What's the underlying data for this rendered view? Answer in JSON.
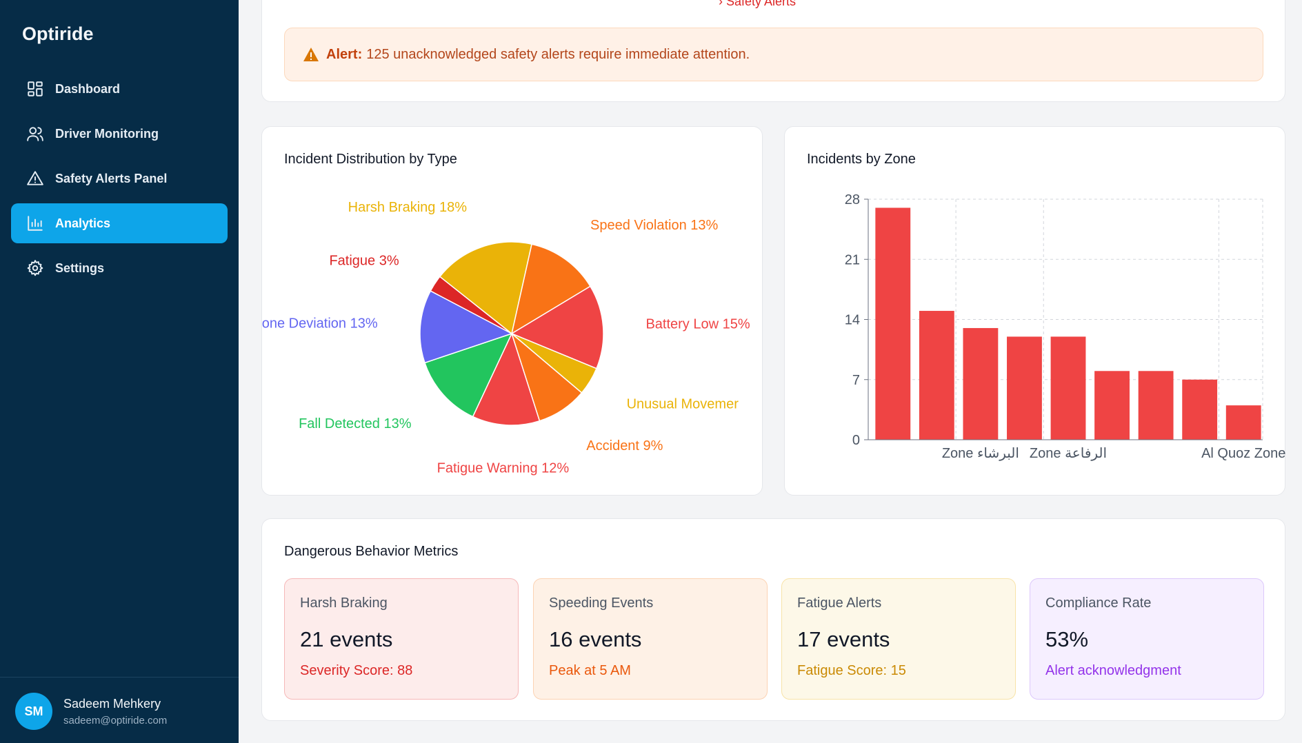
{
  "sidebar": {
    "brand": "Optiride",
    "items": [
      {
        "label": "Dashboard",
        "icon": "dashboard-grid-icon"
      },
      {
        "label": "Driver Monitoring",
        "icon": "users-icon"
      },
      {
        "label": "Safety Alerts Panel",
        "icon": "warning-triangle-icon"
      },
      {
        "label": "Analytics",
        "icon": "bar-chart-icon",
        "active": true
      },
      {
        "label": "Settings",
        "icon": "gear-icon"
      }
    ],
    "user": {
      "initials": "SM",
      "name": "Sadeem Mehkery",
      "email": "sadeem@optiride.com"
    }
  },
  "top": {
    "cut_text": "› Safety Alerts",
    "alert_label": "Alert:",
    "alert_text": "125 unacknowledged safety alerts require immediate attention."
  },
  "pie": {
    "title": "Incident Distribution by Type"
  },
  "zone": {
    "title": "Incidents by Zone"
  },
  "metrics": {
    "title": "Dangerous Behavior Metrics",
    "cards": [
      {
        "label": "Harsh Braking",
        "value": "21 events",
        "sub": "Severity Score: 88",
        "bg": "#fdeceb",
        "border": "#f6b8b8",
        "sub_color": "#dc2626"
      },
      {
        "label": "Speeding Events",
        "value": "16 events",
        "sub": "Peak at 5 AM",
        "bg": "#fef1e6",
        "border": "#fcd3b3",
        "sub_color": "#ea580c"
      },
      {
        "label": "Fatigue Alerts",
        "value": "17 events",
        "sub": "Fatigue Score: 15",
        "bg": "#fdf8e8",
        "border": "#f8e3a8",
        "sub_color": "#ca8a04"
      },
      {
        "label": "Compliance Rate",
        "value": "53%",
        "sub": "Alert acknowledgment",
        "bg": "#f6efff",
        "border": "#dcc8fb",
        "sub_color": "#9333ea"
      }
    ]
  },
  "chart_data": [
    {
      "type": "pie",
      "title": "Incident Distribution by Type",
      "slices": [
        {
          "label": "Speed Violation",
          "percent": 13,
          "color": "#f97316"
        },
        {
          "label": "Battery Low",
          "percent": 15,
          "color": "#ef4444"
        },
        {
          "label": "Unusual Movemer",
          "percent": 5,
          "color": "#eab308"
        },
        {
          "label": "Accident",
          "percent": 9,
          "color": "#f97316"
        },
        {
          "label": "Fatigue Warning",
          "percent": 12,
          "color": "#ef4444"
        },
        {
          "label": "Fall Detected",
          "percent": 13,
          "color": "#22c55e"
        },
        {
          "label": "one Deviation",
          "percent": 13,
          "color": "#6366f1"
        },
        {
          "label": "Fatigue",
          "percent": 3,
          "color": "#dc2626"
        },
        {
          "label": "Harsh Braking",
          "percent": 18,
          "color": "#eab308"
        }
      ],
      "visible_labels": [
        {
          "text": "Speed Violation 13%",
          "color": "#f97316"
        },
        {
          "text": "Battery Low 15%",
          "color": "#ef4444"
        },
        {
          "text": "Unusual Movemer",
          "color": "#eab308"
        },
        {
          "text": "Accident 9%",
          "color": "#f97316"
        },
        {
          "text": "Fatigue Warning 12%",
          "color": "#ef4444"
        },
        {
          "text": "Fall Detected 13%",
          "color": "#22c55e"
        },
        {
          "text": "one Deviation 13%",
          "color": "#6366f1"
        },
        {
          "text": "Fatigue 3%",
          "color": "#dc2626"
        },
        {
          "text": "Harsh Braking 18%",
          "color": "#eab308"
        }
      ]
    },
    {
      "type": "bar",
      "title": "Incidents by Zone",
      "values": [
        27,
        15,
        13,
        12,
        12,
        8,
        8,
        7,
        4
      ],
      "tick_labels": [
        "",
        "",
        "Zone البرشاء",
        "",
        "Zone الرفاعة",
        "",
        "",
        "",
        "Al Quoz Zone"
      ],
      "ylim": [
        0,
        28
      ],
      "yticks": [
        0,
        7,
        14,
        21,
        28
      ],
      "bar_color": "#ef4444",
      "grid": true
    }
  ]
}
